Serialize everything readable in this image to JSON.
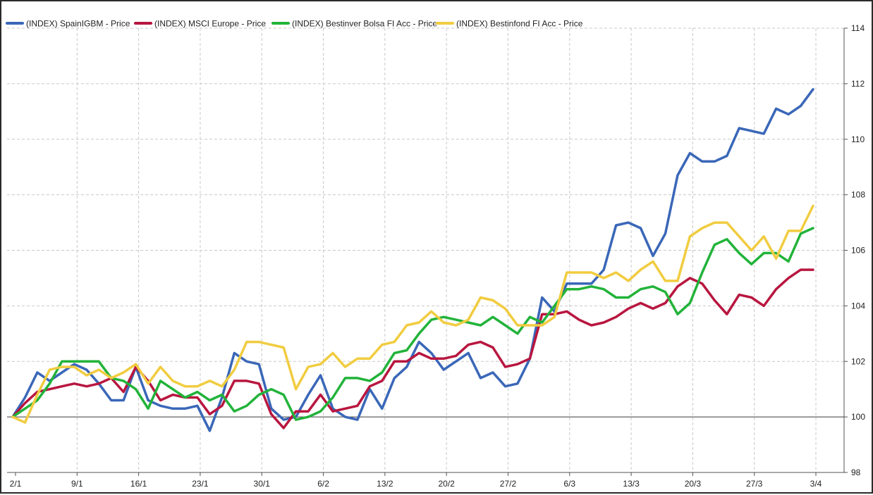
{
  "chart_data": {
    "type": "line",
    "title": "",
    "xlabel": "",
    "ylabel": "",
    "x_tick_labels": [
      "2/1",
      "9/1",
      "16/1",
      "23/1",
      "30/1",
      "6/2",
      "13/2",
      "20/2",
      "27/2",
      "6/3",
      "13/3",
      "20/3",
      "27/3",
      "3/4"
    ],
    "y_ticks": [
      98,
      100,
      102,
      104,
      106,
      108,
      110,
      112,
      114
    ],
    "ylim": [
      98,
      114
    ],
    "grid": true,
    "legend_position": "top-left",
    "reference_line": 100,
    "series": [
      {
        "name": "(INDEX) SpainIGBM - Price",
        "color": "#3a67b8",
        "values": [
          100.0,
          100.7,
          101.6,
          101.3,
          101.6,
          101.9,
          101.7,
          101.2,
          100.6,
          100.6,
          101.8,
          100.6,
          100.4,
          100.3,
          100.3,
          100.4,
          99.5,
          100.7,
          102.3,
          102.0,
          101.9,
          100.3,
          99.9,
          100.0,
          100.8,
          101.5,
          100.3,
          100.0,
          99.9,
          101.0,
          100.3,
          101.4,
          101.8,
          102.7,
          102.3,
          101.7,
          102.0,
          102.3,
          101.4,
          101.6,
          101.1,
          101.2,
          102.1,
          104.3,
          103.8,
          104.8,
          104.8,
          104.8,
          105.3,
          106.9,
          107.0,
          106.8,
          105.8,
          106.6,
          108.7,
          109.5,
          109.2,
          109.2,
          109.4,
          110.4,
          110.3,
          110.2,
          111.1,
          110.9,
          111.2,
          111.8
        ]
      },
      {
        "name": "(INDEX) MSCI Europe - Price",
        "color": "#b8163f",
        "values": [
          100.0,
          100.5,
          100.9,
          101.0,
          101.1,
          101.2,
          101.1,
          101.2,
          101.4,
          100.9,
          101.8,
          101.3,
          100.6,
          100.8,
          100.7,
          100.7,
          100.1,
          100.4,
          101.3,
          101.3,
          101.2,
          100.1,
          99.6,
          100.2,
          100.2,
          100.8,
          100.2,
          100.3,
          100.4,
          101.1,
          101.3,
          102.0,
          102.0,
          102.3,
          102.1,
          102.1,
          102.2,
          102.6,
          102.7,
          102.5,
          101.8,
          101.9,
          102.1,
          103.7,
          103.7,
          103.8,
          103.5,
          103.3,
          103.4,
          103.6,
          103.9,
          104.1,
          103.9,
          104.1,
          104.7,
          105.0,
          104.8,
          104.2,
          103.7,
          104.4,
          104.3,
          104.0,
          104.6,
          105.0,
          105.3,
          105.3
        ]
      },
      {
        "name": "(INDEX) Bestinver Bolsa FI Acc - Price",
        "color": "#22b33a",
        "values": [
          100.0,
          100.3,
          100.6,
          101.2,
          102.0,
          102.0,
          102.0,
          102.0,
          101.4,
          101.3,
          101.0,
          100.3,
          101.3,
          101.0,
          100.7,
          100.9,
          100.6,
          100.8,
          100.2,
          100.4,
          100.8,
          101.0,
          100.8,
          99.9,
          100.0,
          100.2,
          100.7,
          101.4,
          101.4,
          101.3,
          101.6,
          102.3,
          102.4,
          103.0,
          103.5,
          103.6,
          103.5,
          103.4,
          103.3,
          103.6,
          103.3,
          103.0,
          103.6,
          103.4,
          104.0,
          104.6,
          104.6,
          104.7,
          104.6,
          104.3,
          104.3,
          104.6,
          104.7,
          104.5,
          103.7,
          104.1,
          105.2,
          106.2,
          106.4,
          105.9,
          105.5,
          105.9,
          105.9,
          105.6,
          106.6,
          106.8
        ]
      },
      {
        "name": "(INDEX) Bestinfond FI Acc - Price",
        "color": "#f1cc40",
        "values": [
          100.0,
          99.8,
          100.8,
          101.7,
          101.8,
          101.8,
          101.5,
          101.7,
          101.4,
          101.6,
          101.9,
          101.2,
          101.8,
          101.3,
          101.1,
          101.1,
          101.3,
          101.1,
          101.7,
          102.7,
          102.7,
          102.6,
          102.5,
          101.0,
          101.8,
          101.9,
          102.3,
          101.8,
          102.1,
          102.1,
          102.6,
          102.7,
          103.3,
          103.4,
          103.8,
          103.4,
          103.3,
          103.5,
          104.3,
          104.2,
          103.9,
          103.3,
          103.3,
          103.3,
          103.6,
          105.2,
          105.2,
          105.2,
          105.0,
          105.2,
          104.9,
          105.3,
          105.6,
          104.9,
          104.9,
          106.5,
          106.8,
          107.0,
          107.0,
          106.5,
          106.0,
          106.5,
          105.7,
          106.7,
          106.7,
          107.6
        ]
      }
    ]
  }
}
